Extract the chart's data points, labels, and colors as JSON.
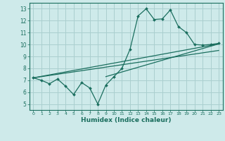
{
  "xlabel": "Humidex (Indice chaleur)",
  "ylabel": "",
  "bg_color": "#ceeaea",
  "grid_color": "#aacfcf",
  "line_color": "#1a6e5e",
  "xlim": [
    -0.5,
    23.5
  ],
  "ylim": [
    4.5,
    13.5
  ],
  "xticks": [
    0,
    1,
    2,
    3,
    4,
    5,
    6,
    7,
    8,
    9,
    10,
    11,
    12,
    13,
    14,
    15,
    16,
    17,
    18,
    19,
    20,
    21,
    22,
    23
  ],
  "yticks": [
    5,
    6,
    7,
    8,
    9,
    10,
    11,
    12,
    13
  ],
  "zigzag_x": [
    0,
    1,
    2,
    3,
    4,
    5,
    6,
    7,
    8,
    9,
    10,
    11,
    12,
    13,
    14,
    15,
    16,
    17,
    18,
    19,
    20,
    21,
    22,
    23
  ],
  "zigzag_y": [
    7.2,
    7.0,
    6.7,
    7.1,
    6.5,
    5.8,
    6.8,
    6.35,
    5.0,
    6.6,
    7.3,
    8.0,
    9.6,
    12.4,
    13.0,
    12.1,
    12.15,
    12.9,
    11.5,
    11.0,
    10.0,
    9.95,
    10.0,
    10.1
  ],
  "line1_x": [
    0,
    23
  ],
  "line1_y": [
    7.2,
    10.05
  ],
  "line2_x": [
    0,
    23
  ],
  "line2_y": [
    7.2,
    9.5
  ],
  "line3_x": [
    9,
    23
  ],
  "line3_y": [
    7.3,
    10.05
  ]
}
